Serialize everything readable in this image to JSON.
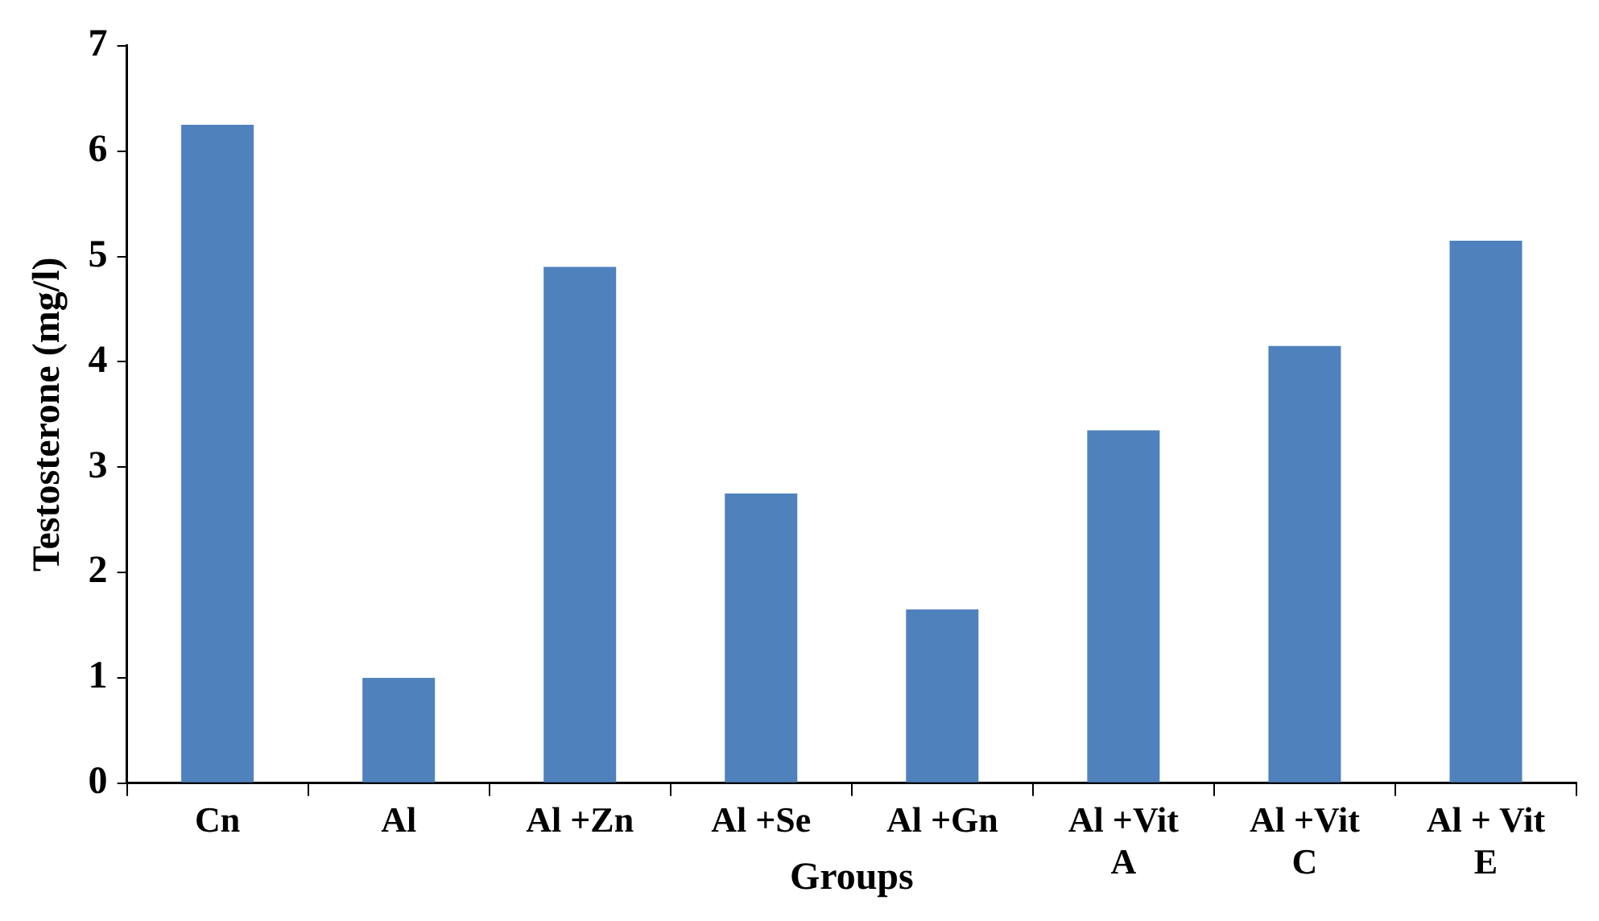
{
  "chart_data": {
    "type": "bar",
    "xlabel": "Groups",
    "ylabel": "Testosterone (mg/l)",
    "categories": [
      "Cn",
      "Al",
      "Al +Zn",
      "Al +Se",
      "Al +Gn",
      "Al +Vit A",
      "Al +Vit C",
      "Al + Vit E"
    ],
    "values": [
      6.25,
      1.0,
      4.9,
      2.75,
      1.65,
      3.35,
      4.15,
      5.15
    ],
    "color": "#4f81bd",
    "ylim": [
      0,
      7
    ],
    "yticks": [
      0,
      1,
      2,
      3,
      4,
      5,
      6,
      7
    ],
    "grid": false,
    "legend": false
  }
}
